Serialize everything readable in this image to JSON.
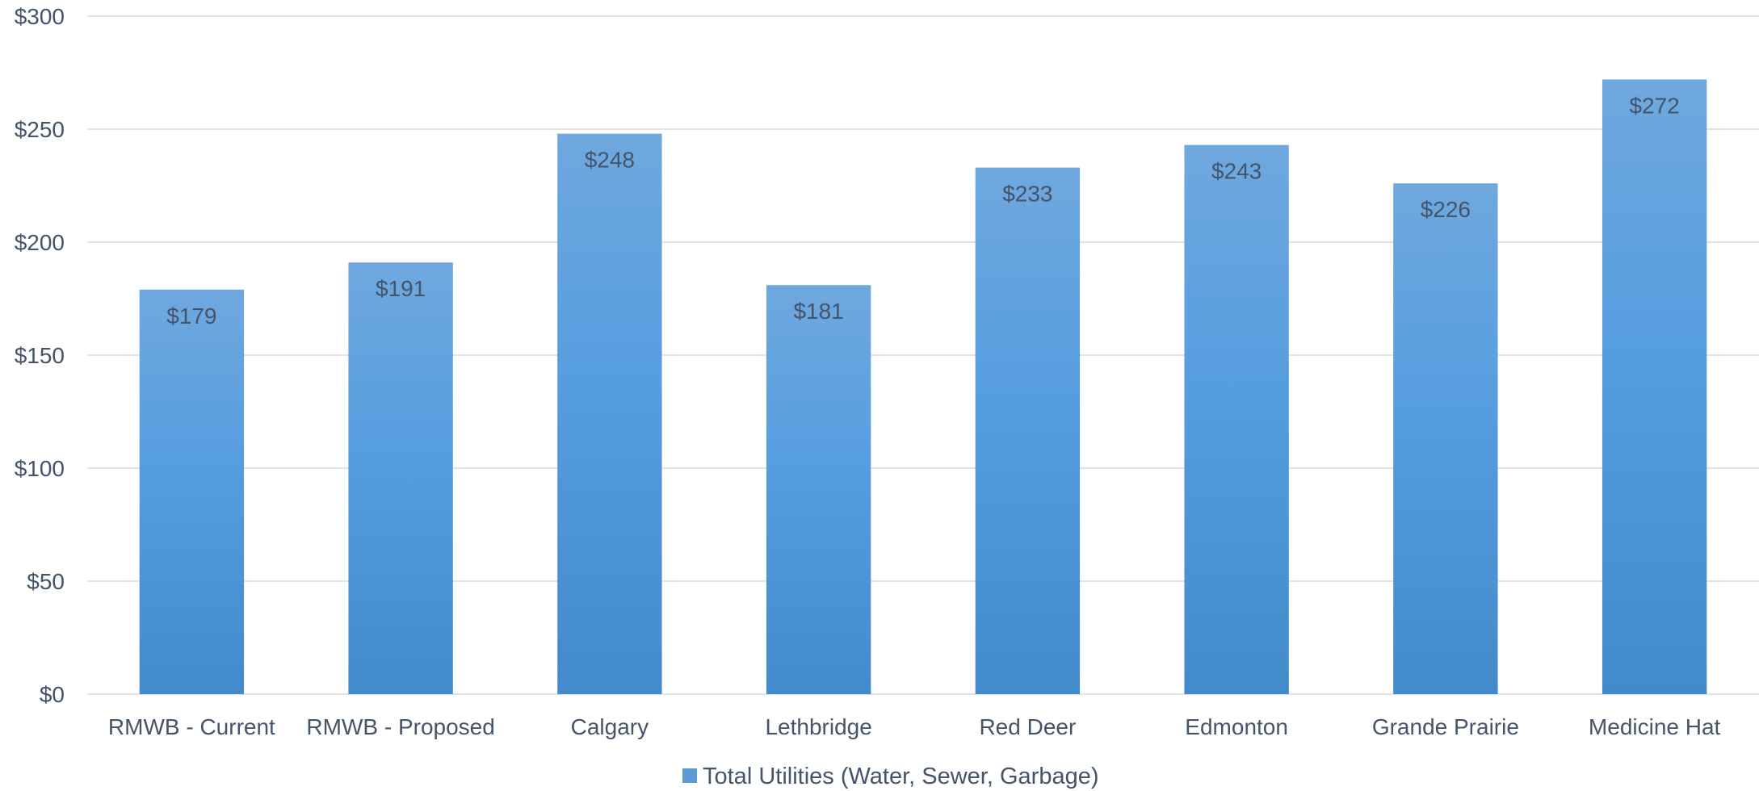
{
  "chart_data": {
    "type": "bar",
    "categories": [
      "RMWB - Current",
      "RMWB - Proposed",
      "Calgary",
      "Lethbridge",
      "Red Deer",
      "Edmonton",
      "Grande Prairie",
      "Medicine Hat"
    ],
    "series": [
      {
        "name": "Total Utilities (Water, Sewer, Garbage)",
        "values": [
          179,
          191,
          248,
          181,
          233,
          243,
          226,
          272
        ],
        "data_labels": [
          "$179",
          "$191",
          "$248",
          "$181",
          "$233",
          "$243",
          "$226",
          "$272"
        ]
      }
    ],
    "y_ticks": [
      "$0",
      "$50",
      "$100",
      "$150",
      "$200",
      "$250",
      "$300"
    ],
    "ylim": [
      0,
      300
    ],
    "y_tick_step": 50,
    "grid": true,
    "legend_position": "bottom",
    "colors": {
      "bar_top": "#6fa8df",
      "bar_mid": "#559ddf",
      "bar_bottom": "#438acb",
      "grid": "#d9d9d9",
      "text": "#44546a",
      "legend_swatch": "#5b9bd5"
    }
  }
}
